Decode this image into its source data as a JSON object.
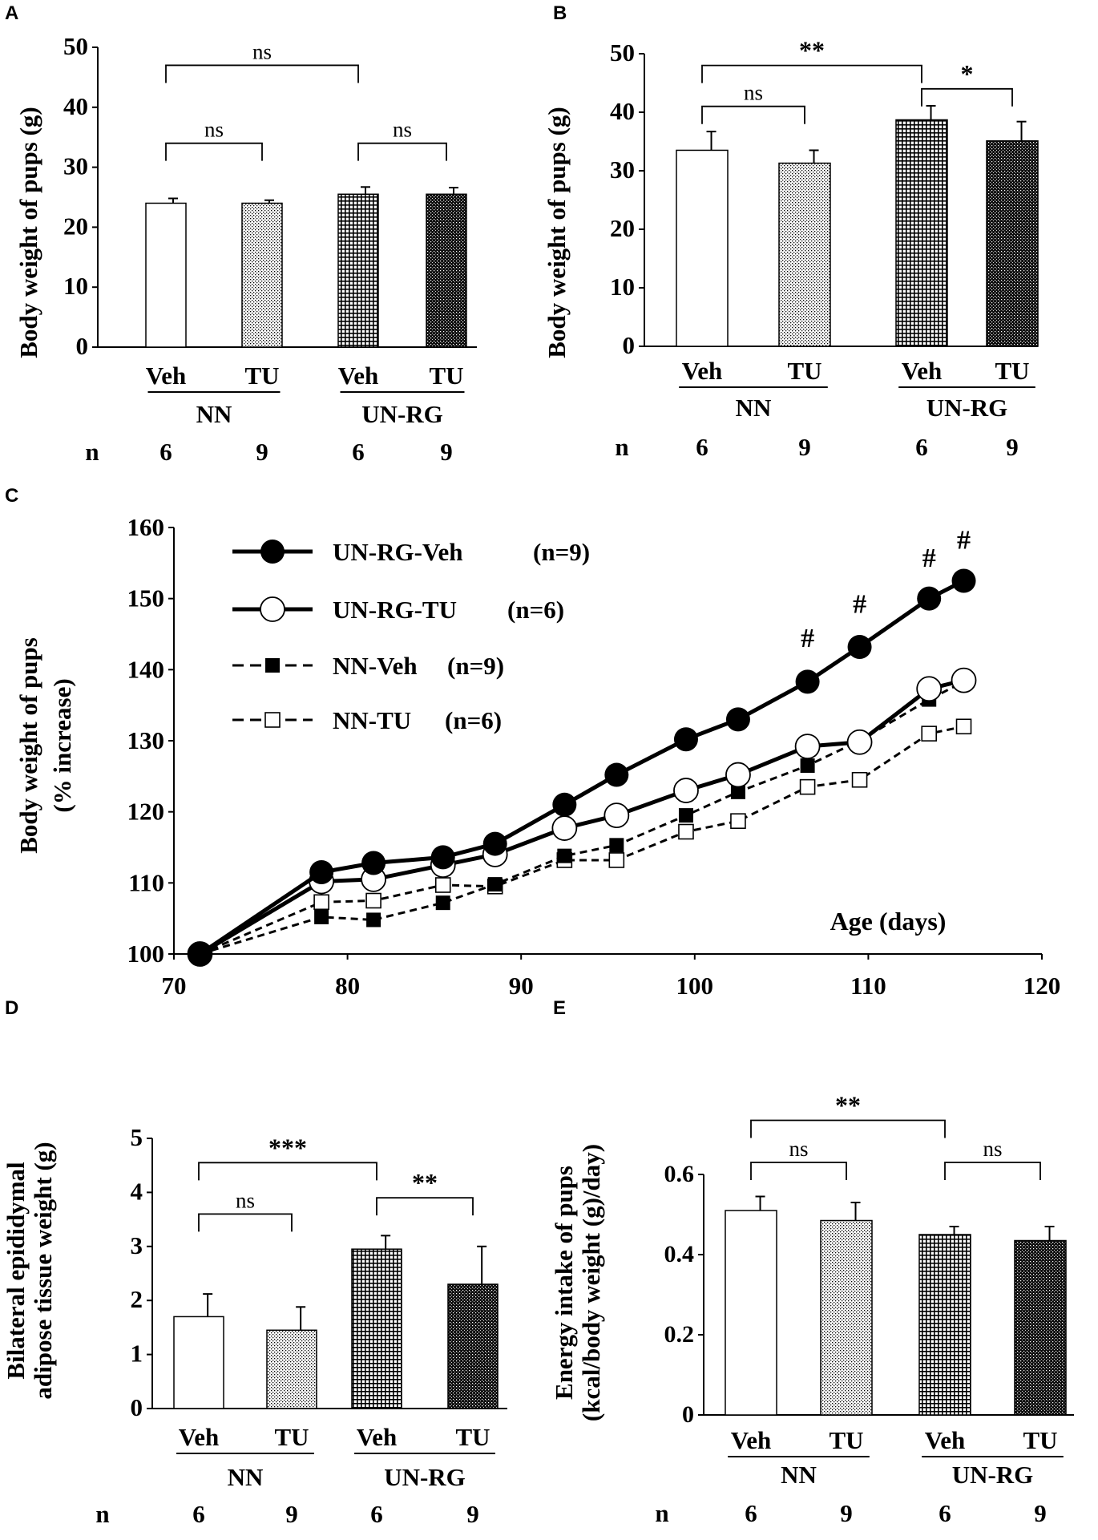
{
  "chart_data": [
    {
      "panel": "A",
      "type": "bar",
      "ylabel": "Body weight of pups (g)",
      "ylim": [
        0,
        50
      ],
      "yticks": [
        0,
        10,
        20,
        30,
        40,
        50
      ],
      "categories": [
        "Veh",
        "TU",
        "Veh",
        "TU"
      ],
      "groups": [
        "NN",
        "UN-RG"
      ],
      "values": [
        24,
        24,
        25.5,
        25.5
      ],
      "errors": [
        0.8,
        0.5,
        1.2,
        1.1
      ],
      "n_label": "n",
      "n": [
        "6",
        "9",
        "6",
        "9"
      ],
      "significance": [
        {
          "from": 0,
          "to": 2,
          "label": "ns",
          "level": 47
        },
        {
          "from": 0,
          "to": 1,
          "label": "ns",
          "level": 34
        },
        {
          "from": 2,
          "to": 3,
          "label": "ns",
          "level": 34
        }
      ]
    },
    {
      "panel": "B",
      "type": "bar",
      "ylabel": "Body weight of pups (g)",
      "ylim": [
        0,
        50
      ],
      "yticks": [
        0,
        10,
        20,
        30,
        40,
        50
      ],
      "categories": [
        "Veh",
        "TU",
        "Veh",
        "TU"
      ],
      "groups": [
        "NN",
        "UN-RG"
      ],
      "values": [
        33.5,
        31.3,
        38.7,
        35.1
      ],
      "errors": [
        3.2,
        2.2,
        2.4,
        3.3
      ],
      "n_label": "n",
      "n": [
        "6",
        "9",
        "6",
        "9"
      ],
      "significance": [
        {
          "from": 0,
          "to": 2,
          "label": "**",
          "level": 48
        },
        {
          "from": 0,
          "to": 1,
          "label": "ns",
          "level": 41
        },
        {
          "from": 2,
          "to": 3,
          "label": "*",
          "level": 44
        }
      ]
    },
    {
      "panel": "C",
      "type": "line",
      "ylabel": "Body weight of pups",
      "ylabel2": "(% increase)",
      "xlabel": "Age (days)",
      "xlim": [
        70,
        120
      ],
      "xticks": [
        70,
        80,
        90,
        100,
        110,
        120
      ],
      "ylim": [
        100,
        160
      ],
      "yticks": [
        100,
        110,
        120,
        130,
        140,
        150,
        160
      ],
      "x": [
        71.5,
        78.5,
        81.5,
        85.5,
        88.5,
        92.5,
        95.5,
        99.5,
        102.5,
        106.5,
        109.5,
        113.5,
        115.5
      ],
      "series": [
        {
          "name": "UN-RG-Veh",
          "n": "(n=9)",
          "marker": "filled-circle",
          "style": "solid",
          "values": [
            100,
            111.5,
            112.8,
            113.6,
            115.5,
            121,
            125.2,
            130.2,
            133,
            138.3,
            143.2,
            150,
            152.5
          ]
        },
        {
          "name": "UN-RG-TU",
          "n": "(n=6)",
          "marker": "open-circle",
          "style": "solid",
          "values": [
            100,
            110.2,
            110.5,
            112.5,
            114,
            117.7,
            119.5,
            123,
            125.2,
            129.2,
            129.8,
            137.3,
            138.5
          ]
        },
        {
          "name": "NN-Veh",
          "n": "(n=9)",
          "marker": "filled-square",
          "style": "dashed",
          "values": [
            100,
            105.2,
            104.8,
            107.2,
            109.8,
            113.8,
            115.3,
            119.5,
            122.8,
            126.5,
            130,
            135.8,
            138.3
          ]
        },
        {
          "name": "NN-TU",
          "n": "(n=6)",
          "marker": "open-square",
          "style": "dashed",
          "values": [
            100,
            107.3,
            107.5,
            109.7,
            109.5,
            113.2,
            113.2,
            117.2,
            118.7,
            123.5,
            124.5,
            131,
            132
          ]
        }
      ],
      "annotations": [
        {
          "x": 106.5,
          "y": 143.2,
          "label": "#"
        },
        {
          "x": 109.5,
          "y": 148,
          "label": "#"
        },
        {
          "x": 113.5,
          "y": 154.5,
          "label": "#"
        },
        {
          "x": 115.5,
          "y": 157,
          "label": "#"
        }
      ]
    },
    {
      "panel": "D",
      "type": "bar",
      "ylabel": "Bilateral epididymal",
      "ylabel2": "adipose tissue weight (g)",
      "ylim": [
        0,
        5
      ],
      "yticks": [
        0,
        1,
        2,
        3,
        4,
        5
      ],
      "categories": [
        "Veh",
        "TU",
        "Veh",
        "TU"
      ],
      "groups": [
        "NN",
        "UN-RG"
      ],
      "values": [
        1.7,
        1.45,
        2.95,
        2.3
      ],
      "errors": [
        0.42,
        0.43,
        0.25,
        0.7
      ],
      "n_label": "n",
      "n": [
        "6",
        "9",
        "6",
        "9"
      ],
      "significance": [
        {
          "from": 0,
          "to": 2,
          "label": "***",
          "level": 4.55
        },
        {
          "from": 0,
          "to": 1,
          "label": "ns",
          "level": 3.6
        },
        {
          "from": 2,
          "to": 3,
          "label": "**",
          "level": 3.9
        }
      ]
    },
    {
      "panel": "E",
      "type": "bar",
      "ylabel": "Energy intake of pups",
      "ylabel2": "(kcal/body weight (g)/day)",
      "ylim": [
        0,
        0.6
      ],
      "yticks": [
        0,
        0.2,
        0.4,
        0.6
      ],
      "ytick_labels": [
        "0",
        "0.2",
        "0.4",
        "0.6"
      ],
      "categories": [
        "Veh",
        "TU",
        "Veh",
        "TU"
      ],
      "groups": [
        "NN",
        "UN-RG"
      ],
      "values": [
        0.51,
        0.485,
        0.45,
        0.435
      ],
      "errors": [
        0.035,
        0.045,
        0.02,
        0.035
      ],
      "n_label": "n",
      "n": [
        "6",
        "9",
        "6",
        "9"
      ],
      "significance": [
        {
          "from": 0,
          "to": 2,
          "label": "**",
          "level": 0.735
        },
        {
          "from": 0,
          "to": 1,
          "label": "ns",
          "level": 0.63
        },
        {
          "from": 2,
          "to": 3,
          "label": "ns",
          "level": 0.63
        }
      ]
    }
  ]
}
